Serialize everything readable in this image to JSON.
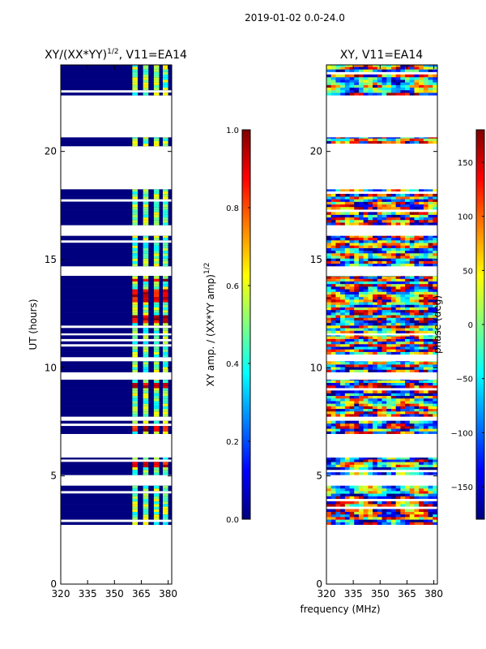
{
  "suptitle": "2019-01-02 0.0-24.0",
  "colors": {
    "jet": [
      "#00007f",
      "#0000ff",
      "#0080ff",
      "#00ffff",
      "#80ff80",
      "#ffff00",
      "#ff8000",
      "#ff0000",
      "#7f0000"
    ],
    "frame": "#000000",
    "background": "#ffffff"
  },
  "xlabel": "frequency (MHz)",
  "chart_data": [
    {
      "type": "heatmap",
      "title_text": "XY/(XX*YY)",
      "title_sup": "1/2",
      "title_rest": ", V11=EA14",
      "ylabel": "UT (hours)",
      "xlim": [
        320,
        382
      ],
      "ylim": [
        0,
        24
      ],
      "xticks": [
        320,
        335,
        350,
        365,
        380
      ],
      "xtick_labels": [
        "320",
        "335",
        "350",
        "365",
        "380"
      ],
      "yticks": [
        0,
        5,
        10,
        15,
        20
      ],
      "ytick_labels": [
        "0",
        "5",
        "10",
        "15",
        "20"
      ],
      "colorbar": {
        "label_text": "XY amp. / (XX*YY amp)",
        "label_sup": "1/2",
        "range": [
          0.0,
          1.0
        ],
        "ticks": [
          0.0,
          0.2,
          0.4,
          0.6,
          0.8,
          1.0
        ],
        "tick_labels": [
          "0.0",
          "0.2",
          "0.4",
          "0.6",
          "0.8",
          "1.0"
        ]
      },
      "data_blocks_hours": [
        [
          2.75,
          4.55
        ],
        [
          5.05,
          5.85
        ],
        [
          6.95,
          7.55
        ],
        [
          7.75,
          9.45
        ],
        [
          9.8,
          10.3
        ],
        [
          10.5,
          11.5
        ],
        [
          11.6,
          14.25
        ],
        [
          14.7,
          16.1
        ],
        [
          16.6,
          18.25
        ],
        [
          20.25,
          20.65
        ],
        [
          22.6,
          24.0
        ]
      ],
      "bright_channels_mhz": [
        [
          360,
          363
        ],
        [
          366,
          369
        ],
        [
          372,
          375
        ],
        [
          377,
          380
        ]
      ],
      "peak_hours": [
        [
          12.0,
          12.4
        ],
        [
          13.0,
          13.6
        ],
        [
          13.9,
          14.1
        ],
        [
          5.3,
          5.6
        ],
        [
          7.0,
          7.4
        ],
        [
          9.0,
          9.3
        ]
      ]
    },
    {
      "type": "heatmap",
      "title_text": "XY, V11=EA14",
      "xlim": [
        320,
        382
      ],
      "ylim": [
        0,
        24
      ],
      "xticks": [
        320,
        335,
        350,
        365,
        380
      ],
      "xtick_labels": [
        "320",
        "335",
        "350",
        "365",
        "380"
      ],
      "yticks": [
        0,
        5,
        10,
        15,
        20
      ],
      "ytick_labels": [
        "0",
        "5",
        "10",
        "15",
        "20"
      ],
      "colorbar": {
        "label_text": "phase (deg)",
        "range": [
          -180,
          180
        ],
        "ticks": [
          -150,
          -100,
          -50,
          0,
          50,
          100,
          150
        ],
        "tick_labels": [
          "−150",
          "−100",
          "−50",
          "0",
          "50",
          "100",
          "150"
        ]
      },
      "data_blocks_hours": [
        [
          2.75,
          4.55
        ],
        [
          5.05,
          5.85
        ],
        [
          6.95,
          7.55
        ],
        [
          7.75,
          9.45
        ],
        [
          9.8,
          10.3
        ],
        [
          10.5,
          11.5
        ],
        [
          11.6,
          14.25
        ],
        [
          14.7,
          16.1
        ],
        [
          16.6,
          18.25
        ],
        [
          20.25,
          20.65
        ],
        [
          22.6,
          24.0
        ]
      ]
    }
  ]
}
